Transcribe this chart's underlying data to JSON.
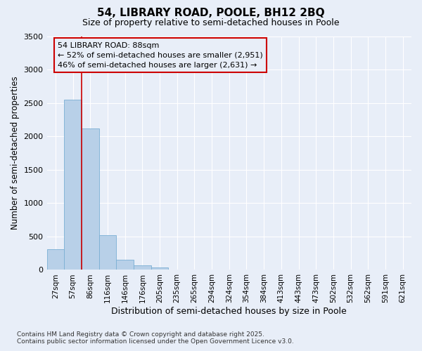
{
  "title": "54, LIBRARY ROAD, POOLE, BH12 2BQ",
  "subtitle": "Size of property relative to semi-detached houses in Poole",
  "xlabel": "Distribution of semi-detached houses by size in Poole",
  "ylabel": "Number of semi-detached properties",
  "categories": [
    "27sqm",
    "57sqm",
    "86sqm",
    "116sqm",
    "146sqm",
    "176sqm",
    "205sqm",
    "235sqm",
    "265sqm",
    "294sqm",
    "324sqm",
    "354sqm",
    "384sqm",
    "413sqm",
    "443sqm",
    "473sqm",
    "502sqm",
    "532sqm",
    "562sqm",
    "591sqm",
    "621sqm"
  ],
  "values": [
    305,
    2545,
    2115,
    525,
    150,
    65,
    35,
    0,
    0,
    0,
    0,
    0,
    0,
    0,
    0,
    0,
    0,
    0,
    0,
    0,
    0
  ],
  "bar_color": "#b8d0e8",
  "bar_edge_color": "#7aafd4",
  "bg_color": "#e8eef8",
  "grid_color": "#ffffff",
  "vline_x": 2.0,
  "vline_color": "#cc0000",
  "annotation_line1": "54 LIBRARY ROAD: 88sqm",
  "annotation_line2": "← 52% of semi-detached houses are smaller (2,951)",
  "annotation_line3": "46% of semi-detached houses are larger (2,631) →",
  "annotation_box_color": "#cc0000",
  "ylim": [
    0,
    3500
  ],
  "yticks": [
    0,
    500,
    1000,
    1500,
    2000,
    2500,
    3000,
    3500
  ],
  "footer_line1": "Contains HM Land Registry data © Crown copyright and database right 2025.",
  "footer_line2": "Contains public sector information licensed under the Open Government Licence v3.0."
}
